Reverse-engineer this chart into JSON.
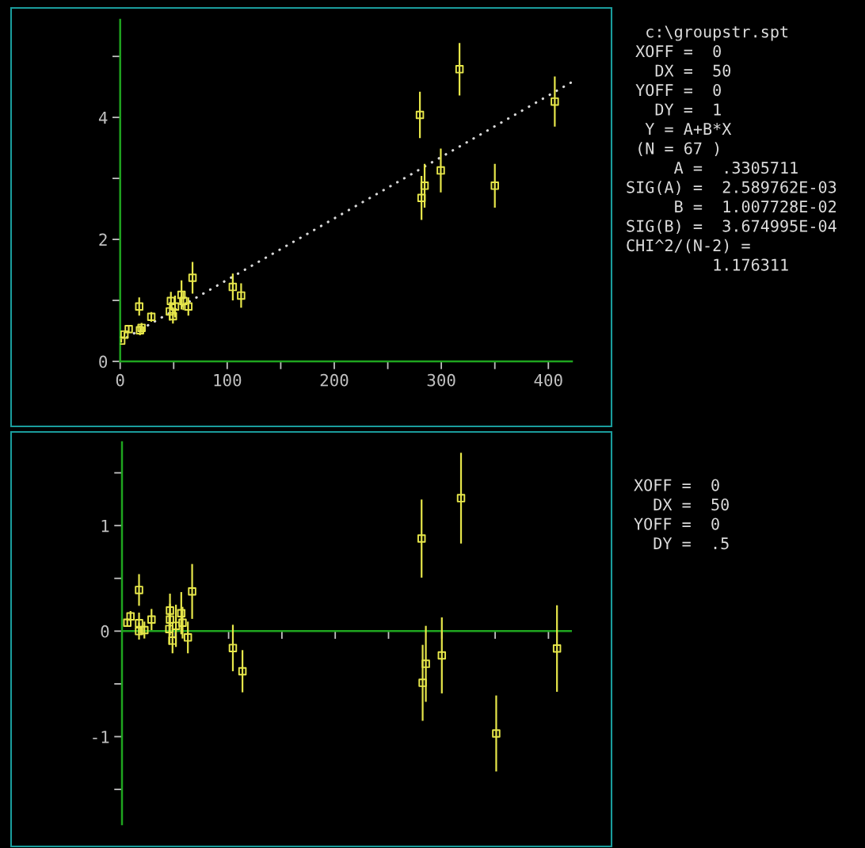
{
  "chart_data": [
    {
      "type": "scatter",
      "xlim": [
        0,
        422
      ],
      "ylim": [
        0,
        5.6
      ],
      "xticks": [
        0,
        {
          "value": 50,
          "label": null
        },
        100,
        {
          "value": 150,
          "label": null
        },
        200,
        {
          "value": 250,
          "label": null
        },
        300,
        {
          "value": 350,
          "label": null
        },
        400
      ],
      "yticks": [
        0,
        {
          "value": 1,
          "label": null
        },
        2,
        {
          "value": 3,
          "label": null
        },
        4,
        {
          "value": 5,
          "label": null
        }
      ],
      "grid": false,
      "series": [
        {
          "type": "scatter",
          "color": "#e6e64a",
          "marker": "square",
          "x": [
            1,
            4,
            8,
            17.8,
            18.5,
            20,
            21,
            24.7,
            29.1,
            46.4,
            47.4,
            49.3,
            51.3,
            57.3,
            59,
            63.7,
            67.6,
            105.2,
            113,
            280,
            281.5,
            284.4,
            299.5,
            317,
            350,
            406
          ],
          "values": [
            0.34,
            0.44,
            0.53,
            0.9,
            0.51,
            0.55,
            null,
            null,
            0.73,
            0.82,
            0.99,
            0.74,
            0.9,
            1.09,
            0.99,
            0.9,
            1.37,
            1.22,
            1.08,
            4.04,
            2.68,
            2.88,
            3.13,
            4.79,
            2.88,
            4.26
          ],
          "errors": [
            0.03,
            0.04,
            0.05,
            0.15,
            0.08,
            0.08,
            null,
            null,
            0.08,
            0.15,
            0.15,
            0.12,
            0.18,
            0.24,
            0.15,
            0.15,
            0.26,
            0.22,
            0.2,
            0.38,
            0.36,
            0.36,
            0.36,
            0.43,
            0.36,
            0.41
          ]
        },
        {
          "type": "line",
          "color": "#d8d8d8",
          "line_style": "dotted",
          "marker": "none",
          "x": [
            0,
            422
          ],
          "values": [
            0.33,
            4.58
          ]
        }
      ],
      "annotations": [
        "  c:\\groupstr.spt",
        " XOFF =  0",
        "   DX =  50",
        " YOFF =  0",
        "   DY =  1",
        "  Y = A+B*X",
        " (N = 67 )",
        "     A =  .3305711",
        "SIG(A) =  2.589762E-03",
        "     B =  1.007728E-02",
        "SIG(B) =  3.674995E-04",
        "CHI^2/(N-2) =",
        "         1.176311"
      ]
    },
    {
      "type": "scatter",
      "xlim": [
        0,
        422
      ],
      "ylim": [
        -1.83,
        1.79
      ],
      "tick_labels": "y",
      "xticks": [
        0,
        50,
        100,
        150,
        200,
        250,
        300,
        350,
        400
      ],
      "yticks": [
        {
          "value": -1.5,
          "label": null
        },
        -1,
        {
          "value": -0.5,
          "label": null
        },
        0,
        {
          "value": 0.5,
          "label": null
        },
        1,
        {
          "value": 1.5,
          "label": null
        }
      ],
      "grid": false,
      "ref_lines": [
        {
          "axis": "y",
          "value": 0,
          "color": "#1fa51f"
        }
      ],
      "series": [
        {
          "type": "scatter",
          "color": "#e6e64a",
          "marker": "square",
          "x": [
            5,
            8,
            16,
            16,
            16,
            21,
            27.7,
            44.4,
            45,
            45,
            47.4,
            50.6,
            55.6,
            56.8,
            61.8,
            65.8,
            104,
            113,
            281,
            282,
            285,
            300,
            318,
            351,
            408
          ],
          "values": [
            0.08,
            0.14,
            0.39,
            0.075,
            0.0,
            0.01,
            0.11,
            0.02,
            0.195,
            0.11,
            -0.09,
            0.05,
            0.17,
            0.08,
            -0.06,
            0.376,
            -0.16,
            -0.38,
            0.877,
            -0.49,
            -0.31,
            -0.23,
            1.26,
            -0.97,
            -0.165
          ],
          "errors": [
            0.04,
            0.05,
            0.15,
            0.1,
            0.08,
            0.08,
            0.1,
            0.15,
            0.16,
            0.15,
            0.12,
            0.2,
            0.2,
            0.15,
            0.15,
            0.26,
            0.22,
            0.2,
            0.37,
            0.36,
            0.36,
            0.36,
            0.43,
            0.36,
            0.41
          ]
        }
      ],
      "annotations": [
        "XOFF =  0",
        "  DX =  50",
        "YOFF =  0",
        "  DY =  .5"
      ]
    }
  ]
}
